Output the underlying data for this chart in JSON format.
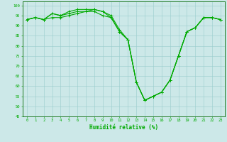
{
  "xlabel": "Humidité relative (%)",
  "background_color": "#cce8e8",
  "grid_color": "#99cccc",
  "line_color": "#00aa00",
  "ylim": [
    45,
    102
  ],
  "xlim": [
    -0.5,
    23.5
  ],
  "yticks": [
    45,
    50,
    55,
    60,
    65,
    70,
    75,
    80,
    85,
    90,
    95,
    100
  ],
  "xticks": [
    0,
    1,
    2,
    3,
    4,
    5,
    6,
    7,
    8,
    9,
    10,
    11,
    12,
    13,
    14,
    15,
    16,
    17,
    18,
    19,
    20,
    21,
    22,
    23
  ],
  "curve1": [
    93,
    94,
    93,
    96,
    95,
    97,
    98,
    98,
    98,
    97,
    95,
    88,
    83,
    62,
    53,
    55,
    57,
    63,
    75,
    87,
    89,
    94,
    94,
    93
  ],
  "curve2": [
    93,
    94,
    93,
    96,
    95,
    96,
    97,
    97,
    98,
    97,
    94,
    87,
    83,
    62,
    53,
    55,
    57,
    63,
    75,
    87,
    89,
    94,
    94,
    93
  ],
  "curve3": [
    93,
    94,
    93,
    94,
    94,
    95,
    96,
    97,
    97,
    95,
    94,
    87,
    83,
    62,
    53,
    55,
    57,
    63,
    75,
    87,
    89,
    94,
    94,
    93
  ]
}
